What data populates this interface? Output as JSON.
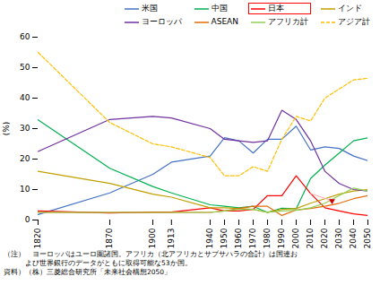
{
  "chart_data": {
    "type": "line",
    "x": [
      1820,
      1870,
      1900,
      1913,
      1940,
      1950,
      1960,
      1970,
      1980,
      1990,
      2000,
      2010,
      2020,
      2030,
      2040,
      2050
    ],
    "series": [
      {
        "name": "米国",
        "color": "#4472C4",
        "line_style": "solid",
        "values": [
          1.8,
          8.9,
          15.0,
          19.0,
          21.0,
          27.0,
          26.0,
          22.0,
          26.5,
          26.5,
          30.8,
          23.0,
          24.0,
          23.5,
          21.0,
          19.5
        ]
      },
      {
        "name": "中国",
        "color": "#00B050",
        "line_style": "solid",
        "values": [
          32.9,
          17.0,
          11.0,
          8.9,
          5.0,
          4.5,
          4.0,
          4.5,
          2.5,
          3.9,
          3.7,
          13.6,
          18.0,
          22.0,
          26.0,
          27.0
        ]
      },
      {
        "name": "日本",
        "color": "#FF0000",
        "line_style": "solid",
        "values": [
          3.0,
          2.3,
          2.6,
          2.6,
          4.0,
          3.0,
          3.0,
          3.5,
          8.0,
          8.0,
          14.5,
          8.7,
          4.0,
          3.0,
          2.0,
          1.5
        ]
      },
      {
        "name": "インド",
        "color": "#C0A000",
        "line_style": "solid",
        "values": [
          16.0,
          12.0,
          8.5,
          7.5,
          4.0,
          4.0,
          3.8,
          3.5,
          2.5,
          3.5,
          3.8,
          5.5,
          7.0,
          8.5,
          9.5,
          10.0
        ]
      },
      {
        "name": "ヨーロッパ",
        "color": "#7030A0",
        "line_style": "solid",
        "values": [
          22.5,
          33.0,
          34.0,
          33.5,
          30.0,
          26.5,
          26.0,
          25.5,
          26.0,
          36.0,
          33.0,
          26.0,
          16.0,
          12.0,
          10.0,
          9.5
        ]
      },
      {
        "name": "ASEAN",
        "color": "#E36C09",
        "line_style": "solid",
        "values": [
          2.5,
          2.5,
          2.5,
          2.5,
          2.5,
          3.0,
          3.8,
          4.5,
          4.5,
          1.5,
          3.3,
          3.8,
          4.5,
          5.5,
          7.0,
          8.0
        ]
      },
      {
        "name": "アフリカ計",
        "color": "#92D050",
        "line_style": "solid",
        "values": [
          2.5,
          2.5,
          2.5,
          2.5,
          2.5,
          3.0,
          3.5,
          3.5,
          2.5,
          3.0,
          3.2,
          4.0,
          5.5,
          8.0,
          10.5,
          9.5
        ]
      },
      {
        "name": "アジア計",
        "color": "#FFBF00",
        "line_style": "dashed",
        "values": [
          55.0,
          32.0,
          25.0,
          24.0,
          20.5,
          14.5,
          14.5,
          17.5,
          16.0,
          26.5,
          34.0,
          32.5,
          40.0,
          43.0,
          46.0,
          46.5
        ]
      }
    ],
    "xlim": [
      1820,
      2050
    ],
    "xticks": [
      1820,
      1870,
      1900,
      1913,
      1940,
      1950,
      1960,
      1970,
      1980,
      1990,
      2000,
      2010,
      2020,
      2030,
      2040,
      2050
    ],
    "ylim": [
      0,
      60
    ],
    "yticks": [
      0,
      10,
      20,
      30,
      40,
      50,
      60
    ],
    "ylabel": "(%)",
    "grid": false,
    "legend": "upper right",
    "legend_highlight": "日本",
    "arrow": {
      "x": [
        2010,
        2025
      ],
      "y": [
        8.7,
        6.3
      ],
      "color": "#FFAAAA",
      "head_color": "#CC0000"
    },
    "notes": [
      "（注）　ヨーロッパはユーロ圏諸国。アフリカ（北アフリカとサブサハラの合計）は国連お",
      "　　　よび世界銀行のデータがともに取得可能な53か国。"
    ],
    "source": "資料）（株）三菱総合研究所「未来社会構想2050」"
  }
}
